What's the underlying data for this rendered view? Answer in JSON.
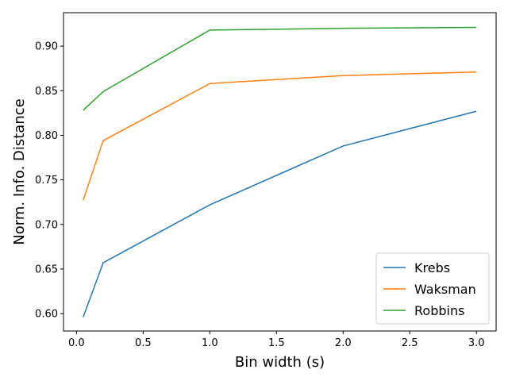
{
  "chart_data": {
    "type": "line",
    "title": "",
    "xlabel": "Bin width (s)",
    "ylabel": "Norm. Info. Distance",
    "xlim": [
      -0.0975,
      3.1475
    ],
    "ylim": [
      0.5805,
      0.9375
    ],
    "xticks": [
      0.0,
      0.5,
      1.0,
      1.5,
      2.0,
      2.5,
      3.0
    ],
    "xtick_labels": [
      "0.0",
      "0.5",
      "1.0",
      "1.5",
      "2.0",
      "2.5",
      "3.0"
    ],
    "yticks": [
      0.6,
      0.65,
      0.7,
      0.75,
      0.8,
      0.85,
      0.9
    ],
    "ytick_labels": [
      "0.60",
      "0.65",
      "0.70",
      "0.75",
      "0.80",
      "0.85",
      "0.90"
    ],
    "x": [
      0.05,
      0.2,
      1.0,
      2.0,
      3.0
    ],
    "grid": false,
    "legend_position": "lower right",
    "series": [
      {
        "name": "Krebs",
        "color": "#1f77b4",
        "values": [
          0.596,
          0.657,
          0.722,
          0.788,
          0.827
        ]
      },
      {
        "name": "Waksman",
        "color": "#ff7f0e",
        "values": [
          0.727,
          0.794,
          0.858,
          0.867,
          0.871
        ]
      },
      {
        "name": "Robbins",
        "color": "#2ca02c",
        "values": [
          0.828,
          0.849,
          0.918,
          0.92,
          0.921
        ]
      }
    ]
  }
}
